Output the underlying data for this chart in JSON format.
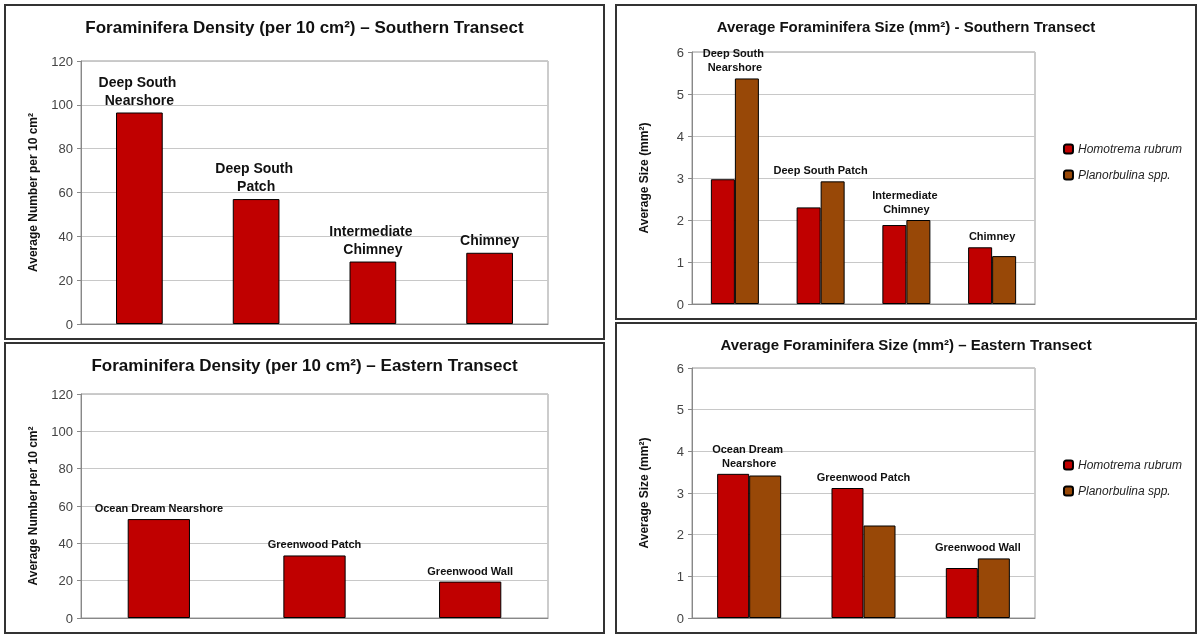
{
  "chart_data": [
    {
      "type": "bar",
      "title": "Foraminifera Density (per 10 cm²) – Southern Transect",
      "ylabel": "Average Number per 10 cm²",
      "categories": [
        "Deep South Nearshore",
        "Deep South Patch",
        "Intermediate Chimney",
        "Chimney"
      ],
      "values": [
        96.5,
        57,
        28.5,
        32.5
      ],
      "color": "#c00000",
      "ylim": [
        0,
        120
      ],
      "yticks": [
        0,
        20,
        40,
        60,
        80,
        100,
        120
      ],
      "grid": "y",
      "tick_labels": "y"
    },
    {
      "type": "bar",
      "title": "Average Foraminifera Size (mm²) - Southern Transect",
      "ylabel": "Average Size (mm²)",
      "categories": [
        "Deep South Nearshore",
        "Deep South Patch",
        "Intermediate Chimney",
        "Chimney"
      ],
      "series": [
        {
          "name": "Homotrema rubrum",
          "color": "#c00000",
          "values": [
            2.97,
            2.3,
            1.88,
            1.35
          ]
        },
        {
          "name": "Planorbulina spp.",
          "color": "#984807",
          "values": [
            5.37,
            2.92,
            2.0,
            1.14
          ]
        }
      ],
      "ylim": [
        0,
        6
      ],
      "yticks": [
        0,
        1,
        2,
        3,
        4,
        5,
        6
      ],
      "grid": "y",
      "tick_labels": "y",
      "legend": "right"
    },
    {
      "type": "bar",
      "title": "Foraminifera Density (per 10 cm²) – Eastern Transect",
      "ylabel": "Average Number per 10 cm²",
      "categories": [
        "Ocean Dream Nearshore",
        "Greenwood Patch",
        "Greenwood Wall"
      ],
      "values": [
        53,
        33.5,
        19.5
      ],
      "color": "#c00000",
      "ylim": [
        0,
        120
      ],
      "yticks": [
        0,
        20,
        40,
        60,
        80,
        100,
        120
      ],
      "grid": "y",
      "tick_labels": "y"
    },
    {
      "type": "bar",
      "title": "Average Foraminifera Size (mm²) – Eastern Transect",
      "ylabel": "Average Size (mm²)",
      "categories": [
        "Ocean Dream Nearshore",
        "Greenwood Patch",
        "Greenwood Wall"
      ],
      "series": [
        {
          "name": "Homotrema rubrum",
          "color": "#c00000",
          "values": [
            3.46,
            3.12,
            1.2
          ]
        },
        {
          "name": "Planorbulina spp.",
          "color": "#984807",
          "values": [
            3.42,
            2.22,
            1.43
          ]
        }
      ],
      "ylim": [
        0,
        6
      ],
      "yticks": [
        0,
        1,
        2,
        3,
        4,
        5,
        6
      ],
      "grid": "y",
      "tick_labels": "y",
      "legend": "right"
    }
  ]
}
